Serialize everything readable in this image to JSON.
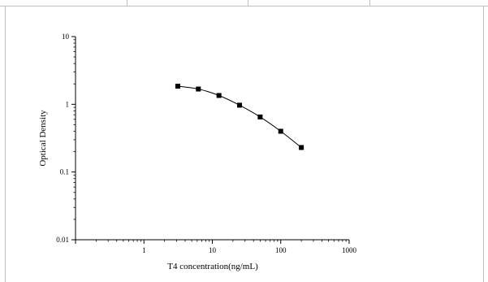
{
  "chart_data": {
    "type": "line",
    "title": "",
    "xlabel": "T4 concentration(ng/mL)",
    "ylabel": "Optical Density",
    "x_scale": "log",
    "y_scale": "log",
    "xlim": [
      0.1,
      1000
    ],
    "ylim": [
      0.01,
      10
    ],
    "x_ticks": [
      "1",
      "10",
      "100",
      "1000"
    ],
    "y_ticks": [
      "0.01",
      "0.1",
      "1",
      "10"
    ],
    "grid": false,
    "legend": "none",
    "series": [
      {
        "x": [
          3.125,
          6.25,
          12.5,
          25,
          50,
          100,
          200
        ],
        "y": [
          1.85,
          1.68,
          1.35,
          0.97,
          0.65,
          0.4,
          0.23
        ],
        "marker": "square",
        "line": "smooth",
        "color": "#000000"
      }
    ]
  },
  "colors": {
    "axis": "#000000",
    "frame": "#bfbfbf",
    "series": "#000000"
  }
}
